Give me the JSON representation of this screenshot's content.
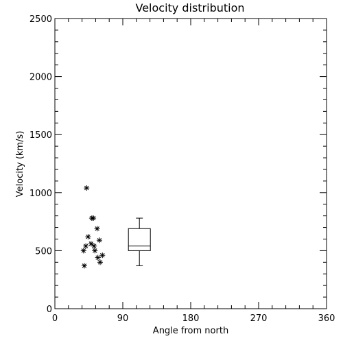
{
  "chart_data": {
    "type": "scatter",
    "title": "Velocity distribution",
    "xlabel": "Angle from north",
    "ylabel": "Velocity (km/s)",
    "xlim": [
      0,
      360
    ],
    "ylim": [
      0,
      2500
    ],
    "x_ticks": [
      0,
      90,
      180,
      270,
      360
    ],
    "y_ticks": [
      0,
      500,
      1000,
      1500,
      2000,
      2500
    ],
    "x_tick_labels": [
      "0",
      "90",
      "180",
      "270",
      "360"
    ],
    "y_tick_labels": [
      "0",
      "500",
      "1000",
      "1500",
      "2000",
      "2500"
    ],
    "grid": false,
    "marker": "asterisk",
    "series": [
      {
        "points": [
          {
            "x": 42,
            "y": 1040
          },
          {
            "x": 49,
            "y": 780
          },
          {
            "x": 51,
            "y": 780
          },
          {
            "x": 56,
            "y": 690
          },
          {
            "x": 44,
            "y": 620
          },
          {
            "x": 59,
            "y": 590
          },
          {
            "x": 48,
            "y": 560
          },
          {
            "x": 41,
            "y": 540
          },
          {
            "x": 52,
            "y": 540
          },
          {
            "x": 38,
            "y": 500
          },
          {
            "x": 53,
            "y": 500
          },
          {
            "x": 63,
            "y": 460
          },
          {
            "x": 57,
            "y": 440
          },
          {
            "x": 60,
            "y": 400
          },
          {
            "x": 39,
            "y": 370
          }
        ]
      }
    ],
    "boxplot": {
      "x": 112,
      "min": 370,
      "q1": 500,
      "median": 540,
      "q3": 690,
      "max": 780
    }
  }
}
